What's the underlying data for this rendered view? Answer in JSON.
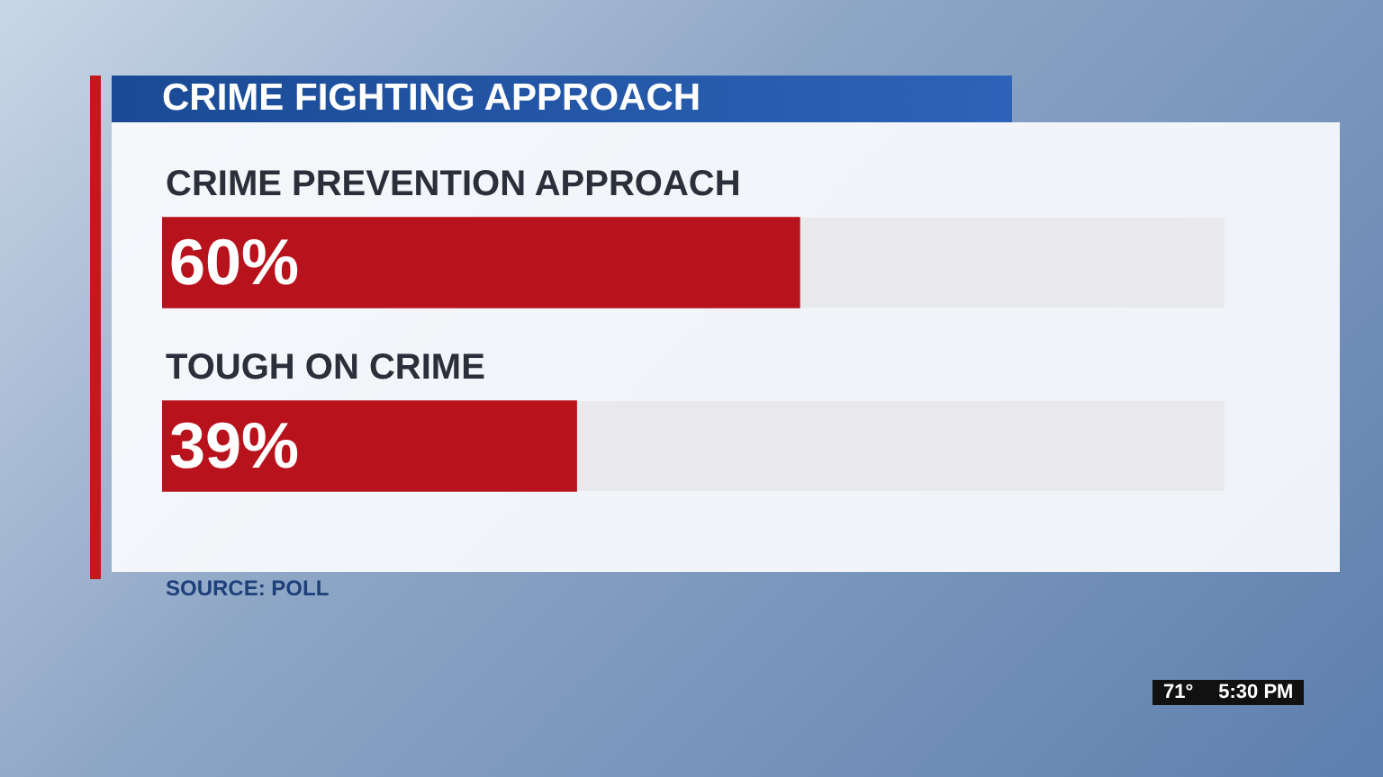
{
  "chart_data": {
    "type": "bar",
    "orientation": "horizontal",
    "title": "CRIME FIGHTING APPROACH",
    "categories": [
      "CRIME PREVENTION APPROACH",
      "TOUGH ON CRIME"
    ],
    "values": [
      60,
      39
    ],
    "value_labels": [
      "60%",
      "39%"
    ],
    "color": "#b8121d",
    "xlim": [
      0,
      100
    ],
    "tick_labels": "y",
    "legend": false,
    "annotations": [
      "SOURCE: POLL",
      "71°",
      "5:30 PM"
    ]
  }
}
